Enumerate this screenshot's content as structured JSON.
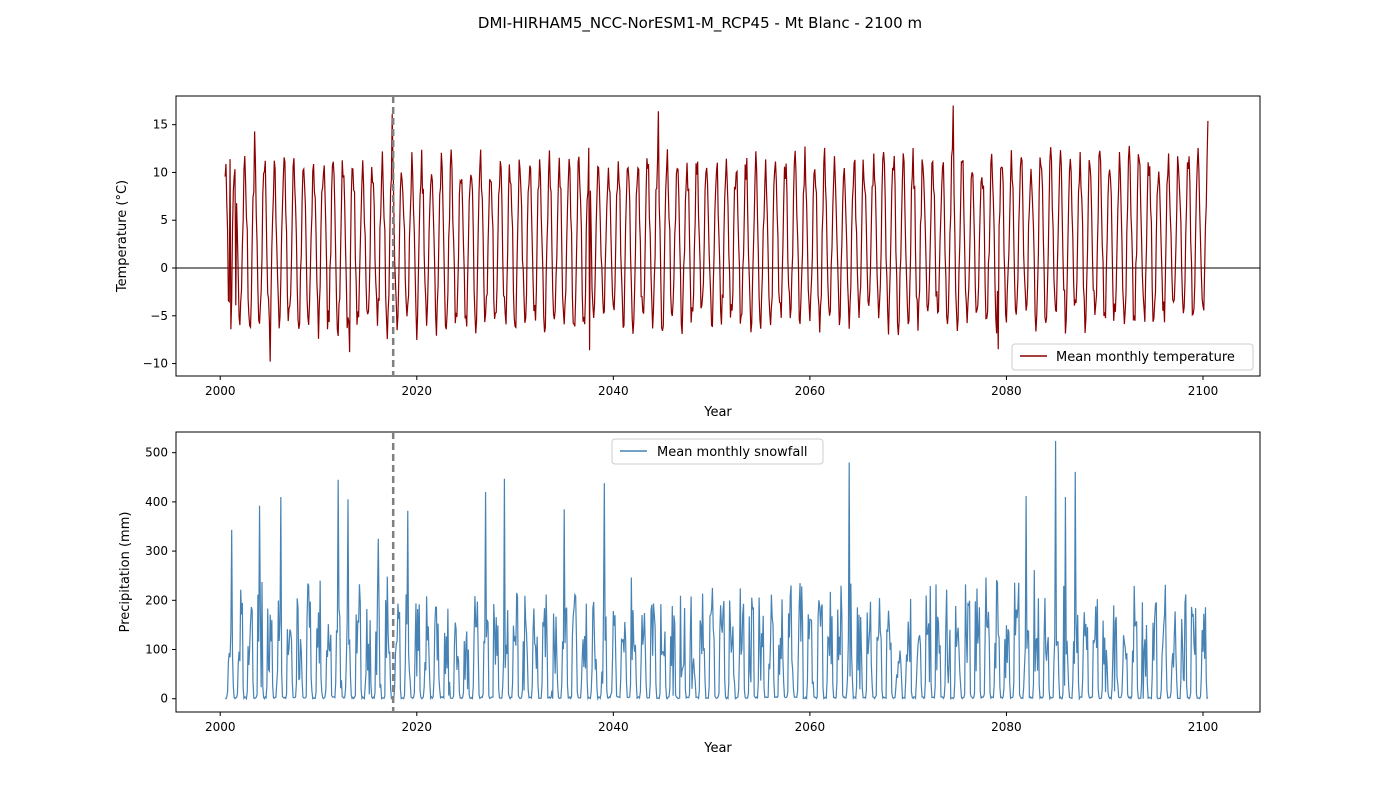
{
  "figure": {
    "title": "DMI-HIRHAM5_NCC-NorESM1-M_RCP45 - Mt Blanc - 2100 m"
  },
  "chart_data": [
    {
      "type": "line",
      "xlabel": "Year",
      "ylabel": "Temperature (°C)",
      "xlim": [
        1995.5,
        2105.8
      ],
      "ylim": [
        -11.3,
        18.0
      ],
      "xticks": [
        2000,
        2020,
        2040,
        2060,
        2080,
        2100
      ],
      "yticks": [
        -10,
        -5,
        0,
        5,
        10,
        15
      ],
      "grid": false,
      "legend": "lower right",
      "reference_line": {
        "y": 0,
        "color": "#000000"
      },
      "vertical_marker": {
        "x": 2017.6,
        "color": "#808080",
        "style": "dashed"
      },
      "series": [
        {
          "name": "Mean monthly temperature",
          "color": "#8b0000",
          "x_start": 2000.5,
          "x_step_months": 1,
          "seasonal_model": {
            "amplitude": 8.2,
            "mean": 2.3,
            "peak_month": 7,
            "noise": 1.8,
            "trend_per_century": 0.8
          },
          "extremes": [
            {
              "x": 2001.0,
              "y": 11.4
            },
            {
              "x": 2001.6,
              "y": -3.9
            },
            {
              "x": 2005.1,
              "y": -9.8
            },
            {
              "x": 2003.5,
              "y": 14.3
            },
            {
              "x": 2013.2,
              "y": -8.8
            },
            {
              "x": 2017.5,
              "y": 16.1
            },
            {
              "x": 2037.6,
              "y": -8.6
            },
            {
              "x": 2044.6,
              "y": 16.4
            },
            {
              "x": 2074.6,
              "y": 17.0
            },
            {
              "x": 2079.2,
              "y": -8.5
            },
            {
              "x": 2100.5,
              "y": 15.4
            },
            {
              "x": 2100.6,
              "y": 11.0
            }
          ]
        }
      ]
    },
    {
      "type": "line",
      "xlabel": "Year",
      "ylabel": "Precipitation (mm)",
      "xlim": [
        1995.5,
        2105.8
      ],
      "ylim": [
        -27,
        542
      ],
      "xticks": [
        2000,
        2020,
        2040,
        2060,
        2080,
        2100
      ],
      "yticks": [
        0,
        100,
        200,
        300,
        400,
        500
      ],
      "grid": false,
      "legend": "upper center",
      "vertical_marker": {
        "x": 2017.6,
        "color": "#808080",
        "style": "dashed"
      },
      "series": [
        {
          "name": "Mean monthly snowfall",
          "color": "#4682b4",
          "x_start": 2000.5,
          "x_step_months": 1,
          "seasonal_model": {
            "winter_mean": 150,
            "summer_value": 0,
            "noise": 90
          },
          "peaks": [
            {
              "x": 2001.2,
              "y": 343
            },
            {
              "x": 2004.0,
              "y": 392
            },
            {
              "x": 2006.2,
              "y": 410
            },
            {
              "x": 2012.0,
              "y": 445
            },
            {
              "x": 2013.0,
              "y": 405
            },
            {
              "x": 2016.1,
              "y": 325
            },
            {
              "x": 2019.1,
              "y": 382
            },
            {
              "x": 2027.0,
              "y": 420
            },
            {
              "x": 2028.9,
              "y": 447
            },
            {
              "x": 2035.0,
              "y": 385
            },
            {
              "x": 2039.1,
              "y": 438
            },
            {
              "x": 2064.0,
              "y": 480
            },
            {
              "x": 2085.0,
              "y": 524
            },
            {
              "x": 2087.0,
              "y": 461
            },
            {
              "x": 2086.0,
              "y": 410
            },
            {
              "x": 2082.0,
              "y": 412
            }
          ]
        }
      ]
    }
  ]
}
